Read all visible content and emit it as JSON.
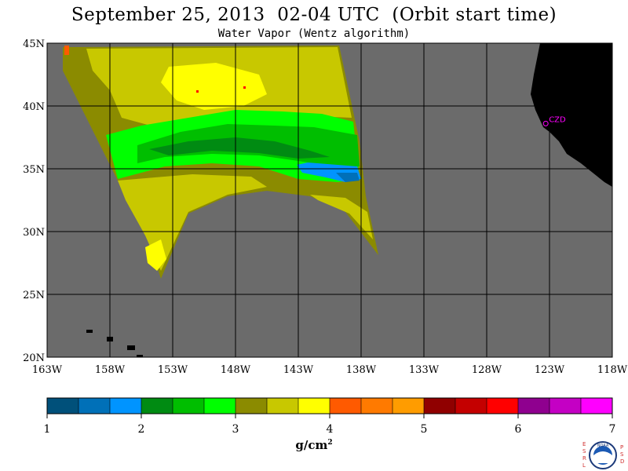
{
  "title": "September 25, 2013  02-04 UTC  (Orbit start time)",
  "subtitle": "Water Vapor (Wentz algorithm)",
  "map": {
    "lon_range": [
      -163,
      -118
    ],
    "lat_range": [
      20,
      45
    ],
    "ocean_color": "#6b6b6b",
    "land_color": "#000000",
    "grid_color": "#000000",
    "lat_ticks": [
      {
        "value": 45,
        "label": "45N"
      },
      {
        "value": 40,
        "label": "40N"
      },
      {
        "value": 35,
        "label": "35N"
      },
      {
        "value": 30,
        "label": "30N"
      },
      {
        "value": 25,
        "label": "25N"
      },
      {
        "value": 20,
        "label": "20N"
      }
    ],
    "lon_ticks": [
      {
        "value": -163,
        "label": "163W"
      },
      {
        "value": -158,
        "label": "158W"
      },
      {
        "value": -153,
        "label": "153W"
      },
      {
        "value": -148,
        "label": "148W"
      },
      {
        "value": -143,
        "label": "143W"
      },
      {
        "value": -138,
        "label": "138W"
      },
      {
        "value": -133,
        "label": "133W"
      },
      {
        "value": -128,
        "label": "128W"
      },
      {
        "value": -123,
        "label": "123W"
      },
      {
        "value": -118,
        "label": "118W"
      }
    ],
    "station": {
      "label": "CZD",
      "lon": -123.3,
      "lat": 38.6,
      "color": "#ff00ff"
    }
  },
  "colorbar": {
    "min": 1,
    "max": 7,
    "colors": [
      "#00507a",
      "#0070b8",
      "#0094ff",
      "#008b12",
      "#00be00",
      "#00ff00",
      "#8b8b00",
      "#c8c800",
      "#ffff00",
      "#ff5a00",
      "#ff7a00",
      "#ff9c00",
      "#900000",
      "#c40000",
      "#ff0000",
      "#8f008f",
      "#c400c4",
      "#ff00ff"
    ],
    "labels": [
      "1",
      "2",
      "3",
      "4",
      "5",
      "6",
      "7"
    ],
    "unit": "g/cm",
    "unit_sup": "2"
  },
  "logo": {
    "left_letters": [
      "E",
      "S",
      "R",
      "L"
    ],
    "right_letters": [
      "P",
      "S",
      "D"
    ],
    "text": "NOAA"
  }
}
